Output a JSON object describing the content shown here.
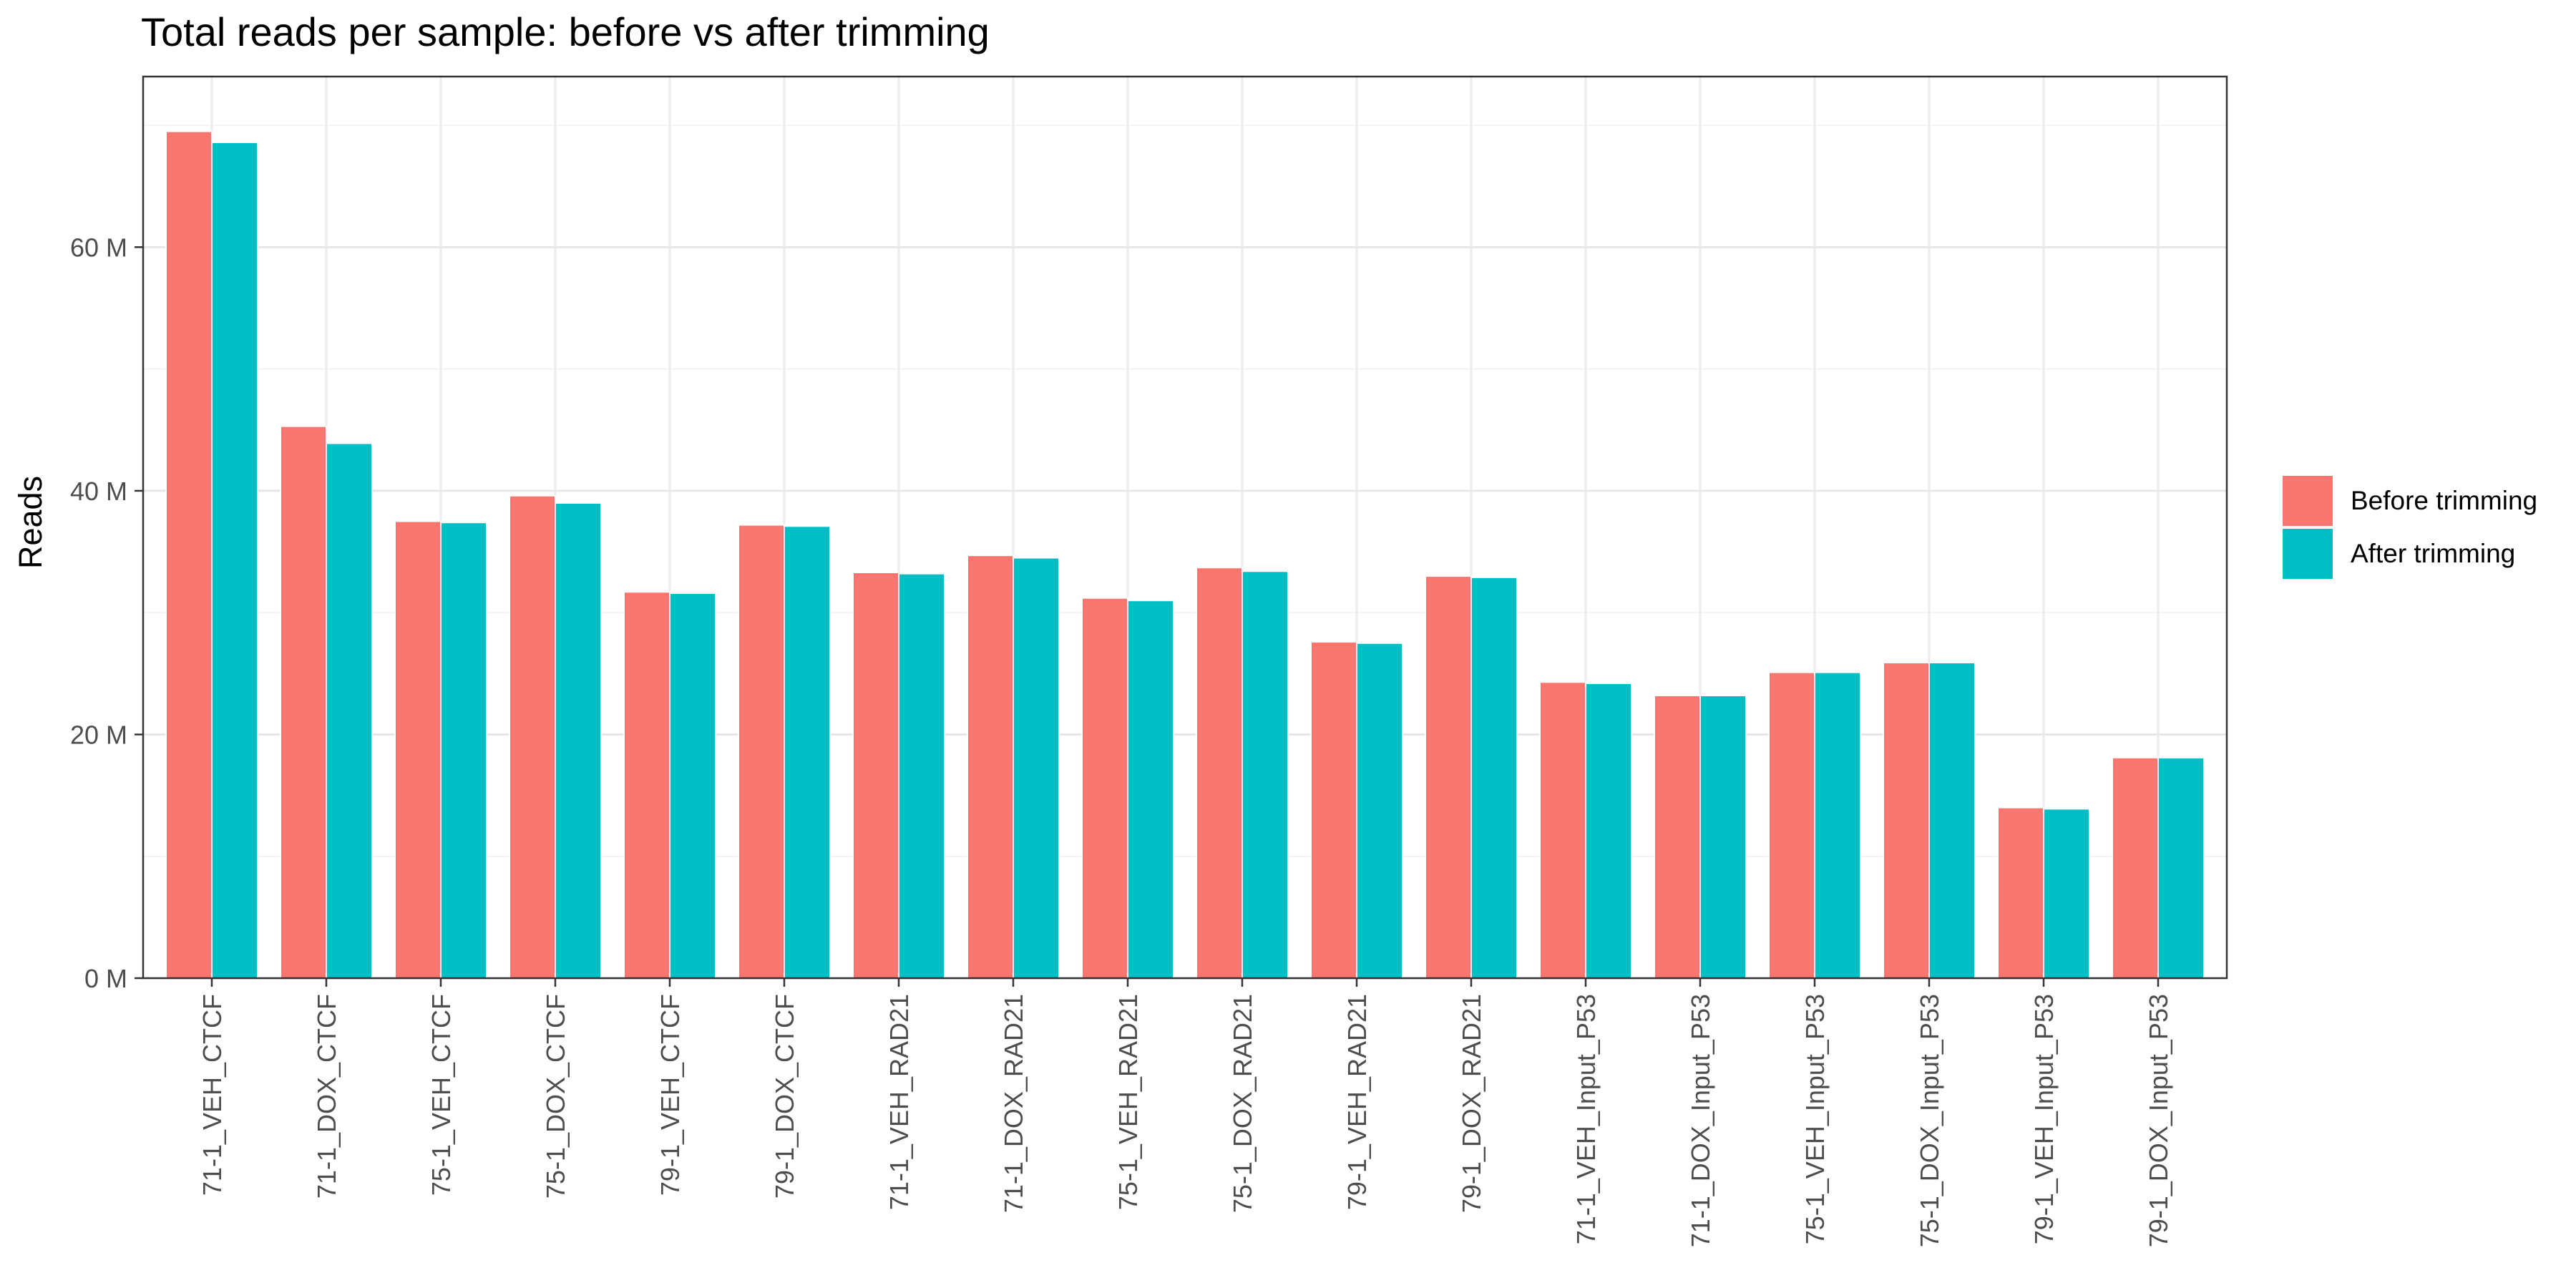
{
  "chart_data": {
    "type": "bar",
    "title": "Total reads per sample: before vs after trimming",
    "xlabel": "",
    "ylabel": "Reads",
    "ylim": [
      0,
      74
    ],
    "y_ticks": [
      0,
      20,
      40,
      60
    ],
    "y_tick_labels": [
      "0 M",
      "20 M",
      "40 M",
      "60 M"
    ],
    "y_unit": "M",
    "grid": true,
    "legend_position": "right",
    "categories": [
      "71-1_VEH_CTCF",
      "71-1_DOX_CTCF",
      "75-1_VEH_CTCF",
      "75-1_DOX_CTCF",
      "79-1_VEH_CTCF",
      "79-1_DOX_CTCF",
      "71-1_VEH_RAD21",
      "71-1_DOX_RAD21",
      "75-1_VEH_RAD21",
      "75-1_DOX_RAD21",
      "79-1_VEH_RAD21",
      "79-1_DOX_RAD21",
      "71-1_VEH_Input_P53",
      "71-1_DOX_Input_P53",
      "75-1_VEH_Input_P53",
      "75-1_DOX_Input_P53",
      "79-1_VEH_Input_P53",
      "79-1_DOX_Input_P53"
    ],
    "series": [
      {
        "name": "Before trimming",
        "color": "#F8766D",
        "values": [
          69.5,
          45.3,
          37.5,
          39.6,
          31.7,
          37.2,
          33.3,
          34.7,
          31.2,
          33.7,
          27.6,
          33.0,
          24.3,
          23.2,
          25.1,
          25.9,
          14.0,
          18.1
        ]
      },
      {
        "name": "After trimming",
        "color": "#00BFC4",
        "values": [
          68.6,
          43.9,
          37.4,
          39.0,
          31.6,
          37.1,
          33.2,
          34.5,
          31.0,
          33.4,
          27.5,
          32.9,
          24.2,
          23.2,
          25.1,
          25.9,
          13.9,
          18.1
        ]
      }
    ]
  }
}
